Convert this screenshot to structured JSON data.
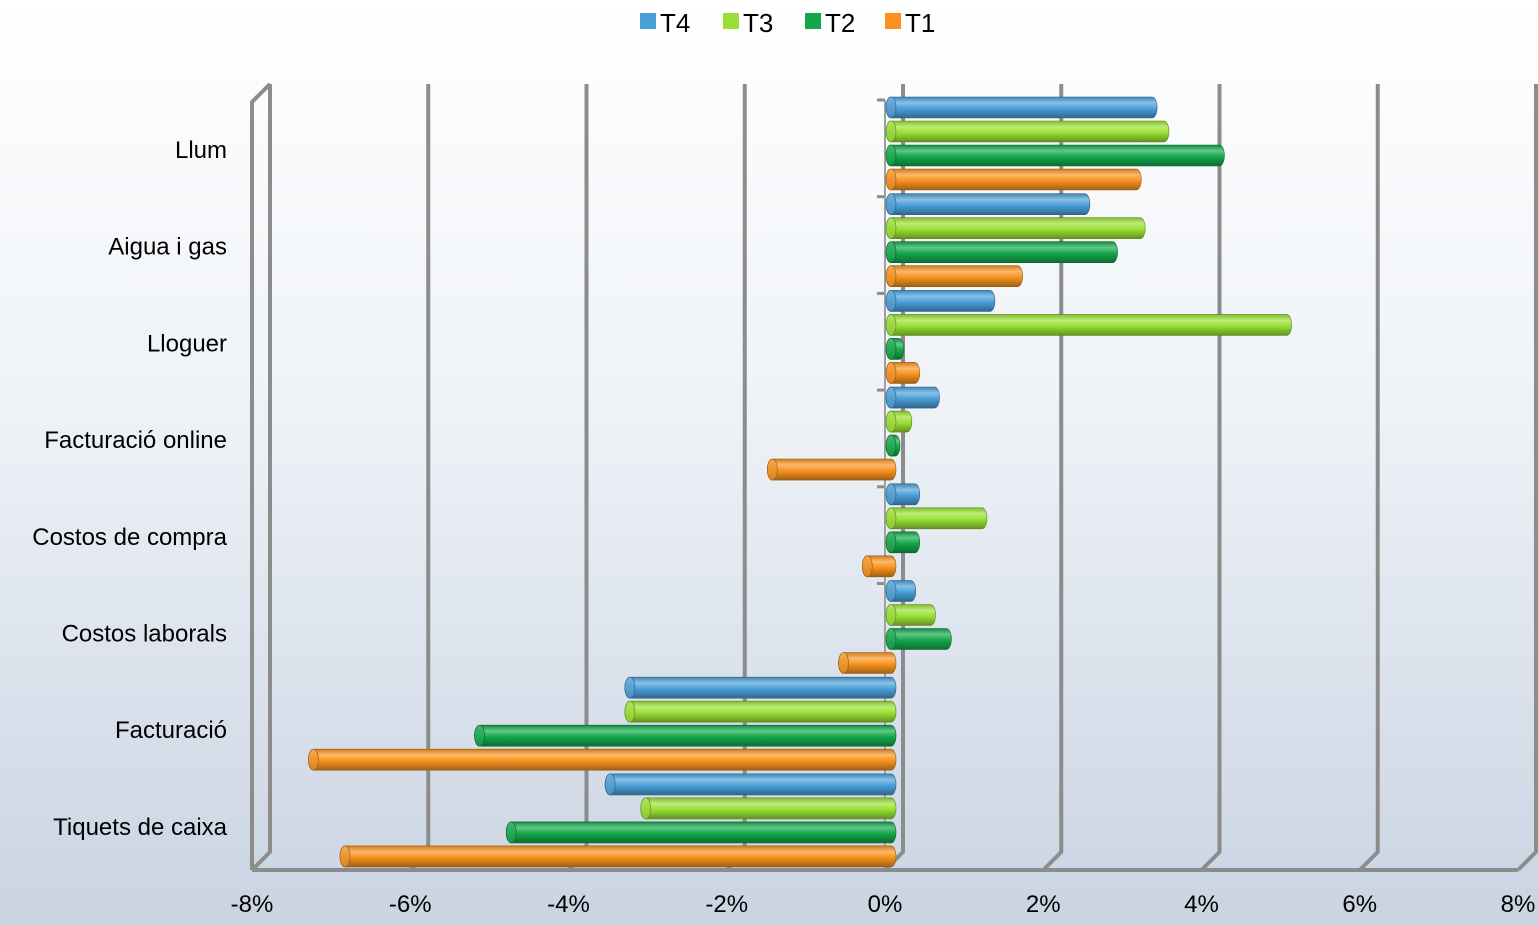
{
  "chart_data": {
    "type": "bar",
    "orientation": "horizontal",
    "style": "3d-cylinder",
    "categories": [
      "Llum",
      "Aigua i gas",
      "Lloguer",
      "Facturació online",
      "Costos de compra",
      "Costos laborals",
      "Facturació",
      "Tiquets de caixa"
    ],
    "series": [
      {
        "name": "T4",
        "color": "#4a9fd8",
        "values": [
          3.3,
          2.45,
          1.25,
          0.55,
          0.3,
          0.25,
          -3.3,
          -3.55
        ]
      },
      {
        "name": "T3",
        "color": "#99e033",
        "values": [
          3.45,
          3.15,
          5.0,
          0.2,
          1.15,
          0.5,
          -3.3,
          -3.1
        ]
      },
      {
        "name": "T2",
        "color": "#12a84a",
        "values": [
          4.15,
          2.8,
          0.1,
          0.05,
          0.3,
          0.7,
          -5.2,
          -4.8
        ]
      },
      {
        "name": "T1",
        "color": "#f7931e",
        "values": [
          3.1,
          1.6,
          0.3,
          -1.5,
          -0.3,
          -0.6,
          -7.3,
          -6.9
        ]
      }
    ],
    "legend_order": [
      "T4",
      "T3",
      "T2",
      "T1"
    ],
    "legend_position": "top",
    "xlim": [
      -8,
      8
    ],
    "xticks": [
      "-8%",
      "-6%",
      "-4%",
      "-2%",
      "0%",
      "2%",
      "4%",
      "6%",
      "8%"
    ],
    "grid": true,
    "title": "",
    "xlabel": "",
    "ylabel": ""
  }
}
